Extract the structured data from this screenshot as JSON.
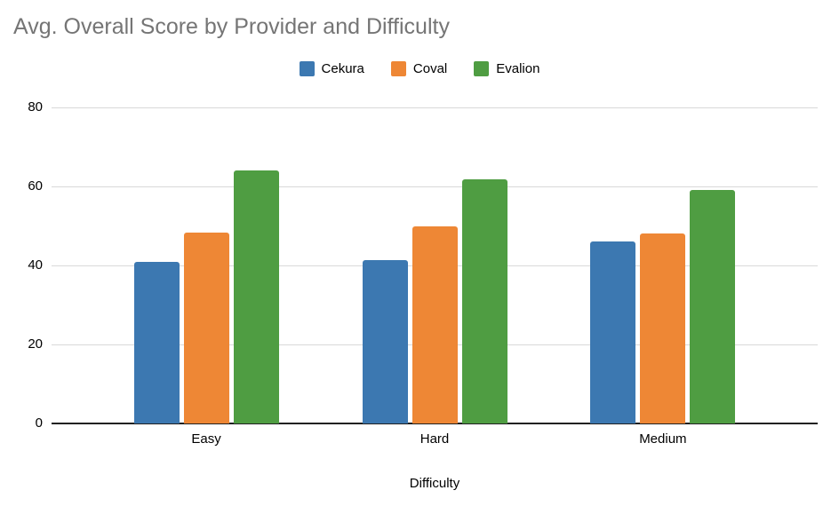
{
  "chart_data": {
    "type": "bar",
    "title": "Avg. Overall Score by Provider and Difficulty",
    "xlabel": "Difficulty",
    "ylabel": "",
    "categories": [
      "Easy",
      "Hard",
      "Medium"
    ],
    "series": [
      {
        "name": "Cekura",
        "color": "#3C78B1",
        "values": [
          41,
          41.3,
          46
        ]
      },
      {
        "name": "Coval",
        "color": "#EE8735",
        "values": [
          48.4,
          50,
          48.2
        ]
      },
      {
        "name": "Evalion",
        "color": "#4F9D42",
        "values": [
          64,
          61.8,
          59
        ]
      }
    ],
    "ylim": [
      0,
      80
    ],
    "yticks": [
      0,
      20,
      40,
      60,
      80
    ],
    "grid": true,
    "legend_position": "top-center",
    "colors": {
      "title_text": "#757575",
      "axis_text": "#000000",
      "gridline": "#D9D9D9",
      "axis_line": "#212121",
      "background": "#FFFFFF"
    }
  }
}
